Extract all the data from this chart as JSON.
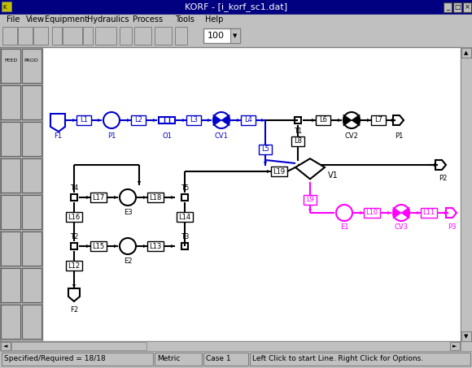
{
  "title": "KORF - [i_korf_sc1.dat]",
  "title_bar_color": "#000080",
  "title_text_color": "#ffffff",
  "bg_color": "#c0c0c0",
  "canvas_color": "#ffffff",
  "menu_items": [
    "File",
    "View",
    "Equipment",
    "Hydraulics",
    "Process",
    "Tools",
    "Help"
  ],
  "blue": "#0000cd",
  "magenta": "#ff00ff",
  "black": "#000000",
  "gray": "#808080",
  "darkgray": "#404040"
}
